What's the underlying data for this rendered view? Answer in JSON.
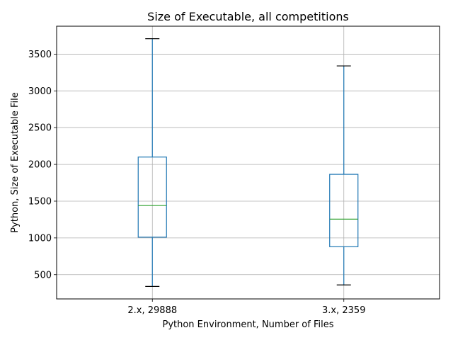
{
  "chart_data": {
    "type": "box",
    "title": "Size of Executable, all competitions",
    "xlabel": "Python Environment, Number of Files",
    "ylabel": "Python, Size of Executable File",
    "categories": [
      "2.x, 29888",
      "3.x, 2359"
    ],
    "boxes": [
      {
        "category": "2.x, 29888",
        "whisker_low": 340,
        "q1": 1010,
        "median": 1440,
        "q3": 2100,
        "whisker_high": 3710
      },
      {
        "category": "3.x, 2359",
        "whisker_low": 360,
        "q1": 880,
        "median": 1255,
        "q3": 1865,
        "whisker_high": 3340
      }
    ],
    "ylim": [
      170,
      3880
    ],
    "yticks": [
      500,
      1000,
      1500,
      2000,
      2500,
      3000,
      3500
    ],
    "grid": true,
    "colors": {
      "box": "#1f77b4",
      "median": "#2ca02c",
      "cap": "#000000",
      "grid": "#b0b0b0"
    }
  }
}
